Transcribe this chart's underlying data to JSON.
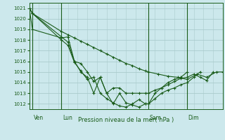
{
  "background_color": "#cce8ec",
  "grid_color": "#aacccc",
  "line_color": "#1a5c1a",
  "title": "Pression niveau de la mer( hPa )",
  "ylim": [
    1011.5,
    1021.5
  ],
  "yticks": [
    1012,
    1013,
    1014,
    1015,
    1016,
    1017,
    1018,
    1019,
    1020,
    1021
  ],
  "xlim": [
    0,
    60
  ],
  "day_labels": [
    "Ven",
    "Lun",
    "Sam",
    "Dim"
  ],
  "day_positions": [
    1,
    10,
    37,
    49
  ],
  "vline_positions": [
    1,
    10,
    37,
    49
  ],
  "series": [
    {
      "x": [
        0,
        1,
        10,
        12,
        14,
        16,
        18,
        20,
        22,
        24,
        26,
        28,
        30,
        32,
        34,
        36,
        37,
        40,
        43,
        46,
        49,
        52,
        55,
        58,
        60
      ],
      "y": [
        1021,
        1020.5,
        1018.8,
        1018.5,
        1018.2,
        1017.9,
        1017.6,
        1017.3,
        1017.0,
        1016.7,
        1016.4,
        1016.1,
        1015.8,
        1015.6,
        1015.3,
        1015.1,
        1015.0,
        1014.8,
        1014.6,
        1014.5,
        1014.3,
        1014.8,
        1014.5,
        1015.0,
        1015.0
      ]
    },
    {
      "x": [
        0,
        1,
        10,
        12,
        14,
        16,
        18,
        20,
        22,
        24,
        26,
        28,
        30,
        32,
        34,
        36,
        37,
        39,
        41,
        43,
        45,
        47,
        49,
        51,
        53,
        55,
        57
      ],
      "y": [
        1021,
        1020.5,
        1018.3,
        1017.8,
        1016.0,
        1015.8,
        1015.0,
        1014.1,
        1014.5,
        1013.0,
        1013.5,
        1013.5,
        1013.0,
        1013.0,
        1013.0,
        1013.0,
        1013.0,
        1013.3,
        1013.5,
        1013.8,
        1014.1,
        1014.4,
        1014.5,
        1014.8,
        1014.5,
        1014.2,
        1015.0
      ]
    },
    {
      "x": [
        0,
        1,
        10,
        12,
        14,
        16,
        18,
        20,
        22,
        24,
        26,
        28,
        30,
        32,
        34,
        36,
        37,
        39,
        41,
        43,
        45,
        47,
        49,
        51,
        53
      ],
      "y": [
        1021,
        1020.5,
        1018.0,
        1017.5,
        1015.9,
        1015.1,
        1014.3,
        1014.5,
        1013.0,
        1012.5,
        1012.1,
        1011.8,
        1011.7,
        1012.0,
        1012.4,
        1012.0,
        1012.0,
        1012.5,
        1013.0,
        1013.3,
        1013.5,
        1013.8,
        1014.0,
        1014.5,
        1015.0
      ]
    },
    {
      "x": [
        0,
        1,
        10,
        12,
        14,
        16,
        18,
        20,
        22,
        24,
        26,
        28,
        30,
        32,
        34,
        36,
        37,
        39,
        41,
        43,
        45,
        47,
        49
      ],
      "y": [
        1021,
        1019.0,
        1018.2,
        1018.3,
        1016.0,
        1015.0,
        1014.5,
        1013.0,
        1014.5,
        1013.0,
        1012.0,
        1013.0,
        1012.1,
        1011.9,
        1011.7,
        1012.0,
        1012.0,
        1013.0,
        1013.5,
        1014.0,
        1014.3,
        1014.5,
        1015.0
      ]
    }
  ]
}
